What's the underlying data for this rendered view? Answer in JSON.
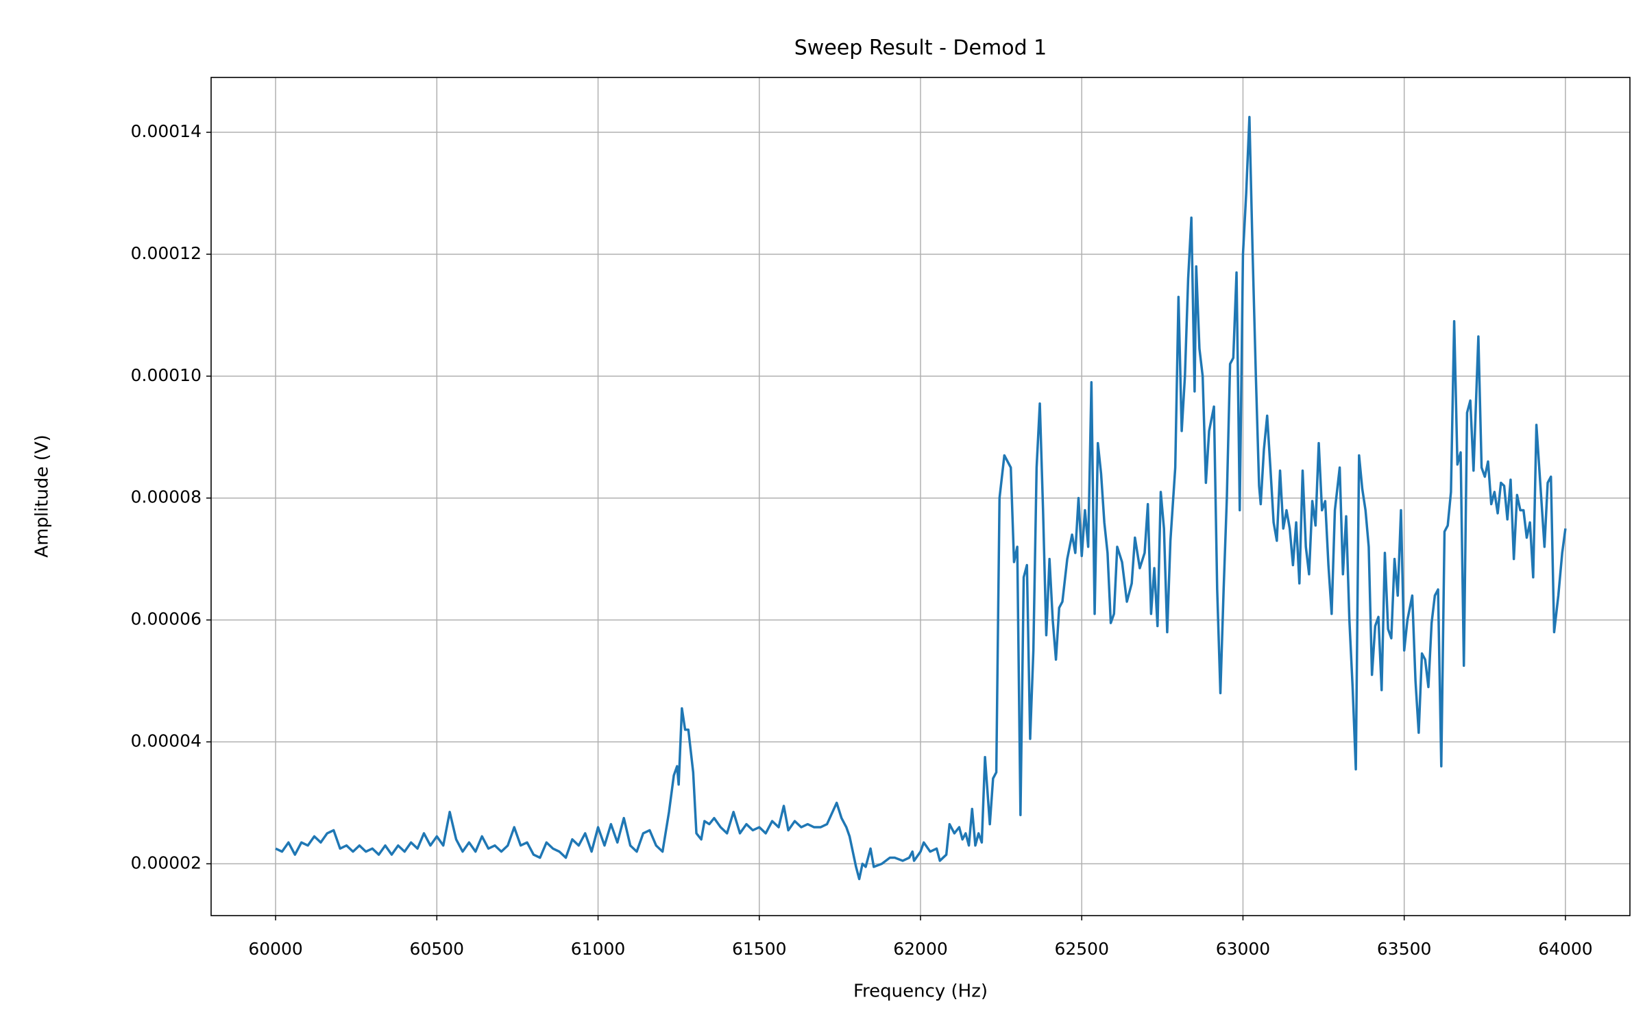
{
  "chart_data": {
    "type": "line",
    "title": "Sweep Result - Demod 1",
    "x_label": "Frequency (Hz)",
    "y_label": "Amplitude (V)",
    "xlim": [
      59800,
      64200
    ],
    "ylim": [
      1.15e-05,
      0.000149
    ],
    "xticks": [
      60000,
      60500,
      61000,
      61500,
      62000,
      62500,
      63000,
      63500,
      64000
    ],
    "yticks": [
      2e-05,
      4e-05,
      6e-05,
      8e-05,
      {
        "value": 0.0001,
        "label": "0.00010"
      },
      0.00012,
      0.00014
    ],
    "grid": true,
    "x": [
      60000,
      60020,
      60040,
      60060,
      60080,
      60100,
      60120,
      60140,
      60160,
      60180,
      60200,
      60220,
      60240,
      60260,
      60280,
      60300,
      60320,
      60340,
      60360,
      60380,
      60400,
      60420,
      60440,
      60460,
      60480,
      60500,
      60520,
      60540,
      60560,
      60580,
      60600,
      60620,
      60640,
      60660,
      60680,
      60700,
      60720,
      60740,
      60760,
      60780,
      60800,
      60820,
      60840,
      60860,
      60880,
      60900,
      60920,
      60940,
      60960,
      60980,
      61000,
      61020,
      61040,
      61060,
      61080,
      61100,
      61120,
      61140,
      61160,
      61180,
      61200,
      61220,
      61235,
      61245,
      61250,
      61260,
      61270,
      61280,
      61295,
      61305,
      61320,
      61330,
      61345,
      61360,
      61380,
      61400,
      61420,
      61440,
      61460,
      61480,
      61500,
      61520,
      61540,
      61560,
      61576,
      61590,
      61610,
      61630,
      61650,
      61670,
      61690,
      61710,
      61740,
      61755,
      61770,
      61780,
      61800,
      61810,
      61820,
      61830,
      61845,
      61855,
      61880,
      61905,
      61920,
      61945,
      61965,
      61975,
      61980,
      62000,
      62010,
      62030,
      62050,
      62060,
      62080,
      62090,
      62105,
      62120,
      62130,
      62140,
      62150,
      62160,
      62170,
      62180,
      62190,
      62200,
      62215,
      62225,
      62235,
      62245,
      62260,
      62280,
      62290,
      62300,
      62310,
      62320,
      62330,
      62340,
      62350,
      62360,
      62370,
      62380,
      62390,
      62400,
      62410,
      62420,
      62430,
      62440,
      62455,
      62470,
      62480,
      62490,
      62500,
      62510,
      62520,
      62530,
      62540,
      62550,
      62560,
      62570,
      62580,
      62590,
      62600,
      62610,
      62625,
      62640,
      62655,
      62665,
      62680,
      62695,
      62705,
      62715,
      62725,
      62735,
      62745,
      62755,
      62765,
      62775,
      62790,
      62800,
      62810,
      62820,
      62830,
      62840,
      62850,
      62855,
      62865,
      62875,
      62885,
      62895,
      62910,
      62920,
      62930,
      62940,
      62950,
      62960,
      62970,
      62980,
      62990,
      63000,
      63010,
      63020,
      63030,
      63040,
      63050,
      63055,
      63065,
      63075,
      63085,
      63095,
      63105,
      63115,
      63125,
      63135,
      63145,
      63155,
      63165,
      63175,
      63185,
      63195,
      63205,
      63215,
      63225,
      63235,
      63245,
      63255,
      63265,
      63275,
      63285,
      63300,
      63310,
      63320,
      63330,
      63340,
      63350,
      63355,
      63360,
      63370,
      63380,
      63390,
      63400,
      63410,
      63420,
      63430,
      63440,
      63450,
      63460,
      63470,
      63480,
      63490,
      63500,
      63510,
      63525,
      63535,
      63545,
      63555,
      63565,
      63575,
      63585,
      63595,
      63605,
      63615,
      63625,
      63635,
      63645,
      63655,
      63665,
      63675,
      63685,
      63695,
      63705,
      63715,
      63730,
      63740,
      63750,
      63760,
      63770,
      63780,
      63790,
      63800,
      63810,
      63820,
      63830,
      63840,
      63850,
      63860,
      63870,
      63880,
      63890,
      63900,
      63910,
      63920,
      63935,
      63945,
      63955,
      63965,
      63978,
      63990,
      64000
    ],
    "series": [
      {
        "color": "#1f77b4",
        "values": [
          2.25e-05,
          2.2e-05,
          2.35e-05,
          2.15e-05,
          2.35e-05,
          2.3e-05,
          2.45e-05,
          2.35e-05,
          2.5e-05,
          2.55e-05,
          2.25e-05,
          2.3e-05,
          2.2e-05,
          2.3e-05,
          2.2e-05,
          2.25e-05,
          2.15e-05,
          2.3e-05,
          2.15e-05,
          2.3e-05,
          2.2e-05,
          2.35e-05,
          2.25e-05,
          2.5e-05,
          2.3e-05,
          2.45e-05,
          2.3e-05,
          2.85e-05,
          2.4e-05,
          2.2e-05,
          2.35e-05,
          2.2e-05,
          2.45e-05,
          2.25e-05,
          2.3e-05,
          2.2e-05,
          2.3e-05,
          2.6e-05,
          2.3e-05,
          2.35e-05,
          2.15e-05,
          2.1e-05,
          2.35e-05,
          2.25e-05,
          2.2e-05,
          2.1e-05,
          2.4e-05,
          2.3e-05,
          2.5e-05,
          2.2e-05,
          2.6e-05,
          2.3e-05,
          2.65e-05,
          2.35e-05,
          2.75e-05,
          2.3e-05,
          2.2e-05,
          2.5e-05,
          2.55e-05,
          2.3e-05,
          2.2e-05,
          2.85e-05,
          3.45e-05,
          3.6e-05,
          3.3e-05,
          4.55e-05,
          4.2e-05,
          4.2e-05,
          3.5e-05,
          2.5e-05,
          2.4e-05,
          2.7e-05,
          2.65e-05,
          2.75e-05,
          2.6e-05,
          2.5e-05,
          2.85e-05,
          2.5e-05,
          2.65e-05,
          2.55e-05,
          2.6e-05,
          2.5e-05,
          2.7e-05,
          2.6e-05,
          2.95e-05,
          2.55e-05,
          2.7e-05,
          2.6e-05,
          2.65e-05,
          2.6e-05,
          2.6e-05,
          2.65e-05,
          3e-05,
          2.75e-05,
          2.6e-05,
          2.45e-05,
          1.95e-05,
          1.75e-05,
          2e-05,
          1.95e-05,
          2.25e-05,
          1.95e-05,
          2e-05,
          2.1e-05,
          2.1e-05,
          2.05e-05,
          2.1e-05,
          2.2e-05,
          2.05e-05,
          2.2e-05,
          2.35e-05,
          2.2e-05,
          2.25e-05,
          2.05e-05,
          2.15e-05,
          2.65e-05,
          2.5e-05,
          2.6e-05,
          2.4e-05,
          2.5e-05,
          2.3e-05,
          2.9e-05,
          2.3e-05,
          2.5e-05,
          2.35e-05,
          3.75e-05,
          2.65e-05,
          3.4e-05,
          3.5e-05,
          8e-05,
          8.7e-05,
          8.5e-05,
          6.95e-05,
          7.2e-05,
          2.8e-05,
          6.7e-05,
          6.9e-05,
          4.05e-05,
          5.5e-05,
          8.5e-05,
          9.55e-05,
          7.8e-05,
          5.75e-05,
          7e-05,
          6e-05,
          5.35e-05,
          6.2e-05,
          6.3e-05,
          7e-05,
          7.4e-05,
          7.1e-05,
          8e-05,
          7.05e-05,
          7.8e-05,
          7.2e-05,
          9.9e-05,
          6.1e-05,
          8.9e-05,
          8.4e-05,
          7.6e-05,
          7.1e-05,
          5.95e-05,
          6.1e-05,
          7.2e-05,
          6.95e-05,
          6.3e-05,
          6.6e-05,
          7.35e-05,
          6.85e-05,
          7.1e-05,
          7.9e-05,
          6.1e-05,
          6.85e-05,
          5.9e-05,
          8.1e-05,
          7.5e-05,
          5.8e-05,
          7.3e-05,
          8.5e-05,
          0.000113,
          9.1e-05,
          0.0001,
          0.000116,
          0.000126,
          9.75e-05,
          0.000118,
          0.0001045,
          0.0001,
          8.25e-05,
          9.1e-05,
          9.5e-05,
          6.5e-05,
          4.8e-05,
          6.5e-05,
          8e-05,
          0.000102,
          0.000103,
          0.000117,
          7.8e-05,
          0.00012,
          0.00013,
          0.0001425,
          0.00012,
          0.0001,
          8.2e-05,
          7.9e-05,
          8.8e-05,
          9.35e-05,
          8.5e-05,
          7.6e-05,
          7.3e-05,
          8.45e-05,
          7.5e-05,
          7.8e-05,
          7.5e-05,
          6.9e-05,
          7.6e-05,
          6.6e-05,
          8.45e-05,
          7.2e-05,
          6.75e-05,
          7.95e-05,
          7.55e-05,
          8.9e-05,
          7.8e-05,
          7.95e-05,
          6.9e-05,
          6.1e-05,
          7.8e-05,
          8.5e-05,
          6.75e-05,
          7.7e-05,
          6e-05,
          4.9e-05,
          3.55e-05,
          6.2e-05,
          8.7e-05,
          8.15e-05,
          7.8e-05,
          7.2e-05,
          5.1e-05,
          5.9e-05,
          6.05e-05,
          4.85e-05,
          7.1e-05,
          5.85e-05,
          5.7e-05,
          7e-05,
          6.4e-05,
          7.8e-05,
          5.5e-05,
          6e-05,
          6.4e-05,
          5e-05,
          4.15e-05,
          5.45e-05,
          5.35e-05,
          4.9e-05,
          5.95e-05,
          6.4e-05,
          6.5e-05,
          3.6e-05,
          7.45e-05,
          7.55e-05,
          8.1e-05,
          0.000109,
          8.55e-05,
          8.75e-05,
          5.25e-05,
          9.4e-05,
          9.6e-05,
          8.45e-05,
          0.0001065,
          8.5e-05,
          8.35e-05,
          8.6e-05,
          7.9e-05,
          8.1e-05,
          7.75e-05,
          8.25e-05,
          8.2e-05,
          7.65e-05,
          8.3e-05,
          7e-05,
          8.05e-05,
          7.8e-05,
          7.8e-05,
          7.35e-05,
          7.6e-05,
          6.7e-05,
          9.2e-05,
          8.4e-05,
          7.2e-05,
          8.25e-05,
          8.35e-05,
          5.8e-05,
          6.4e-05,
          7.1e-05,
          7.5e-05
        ]
      }
    ]
  }
}
